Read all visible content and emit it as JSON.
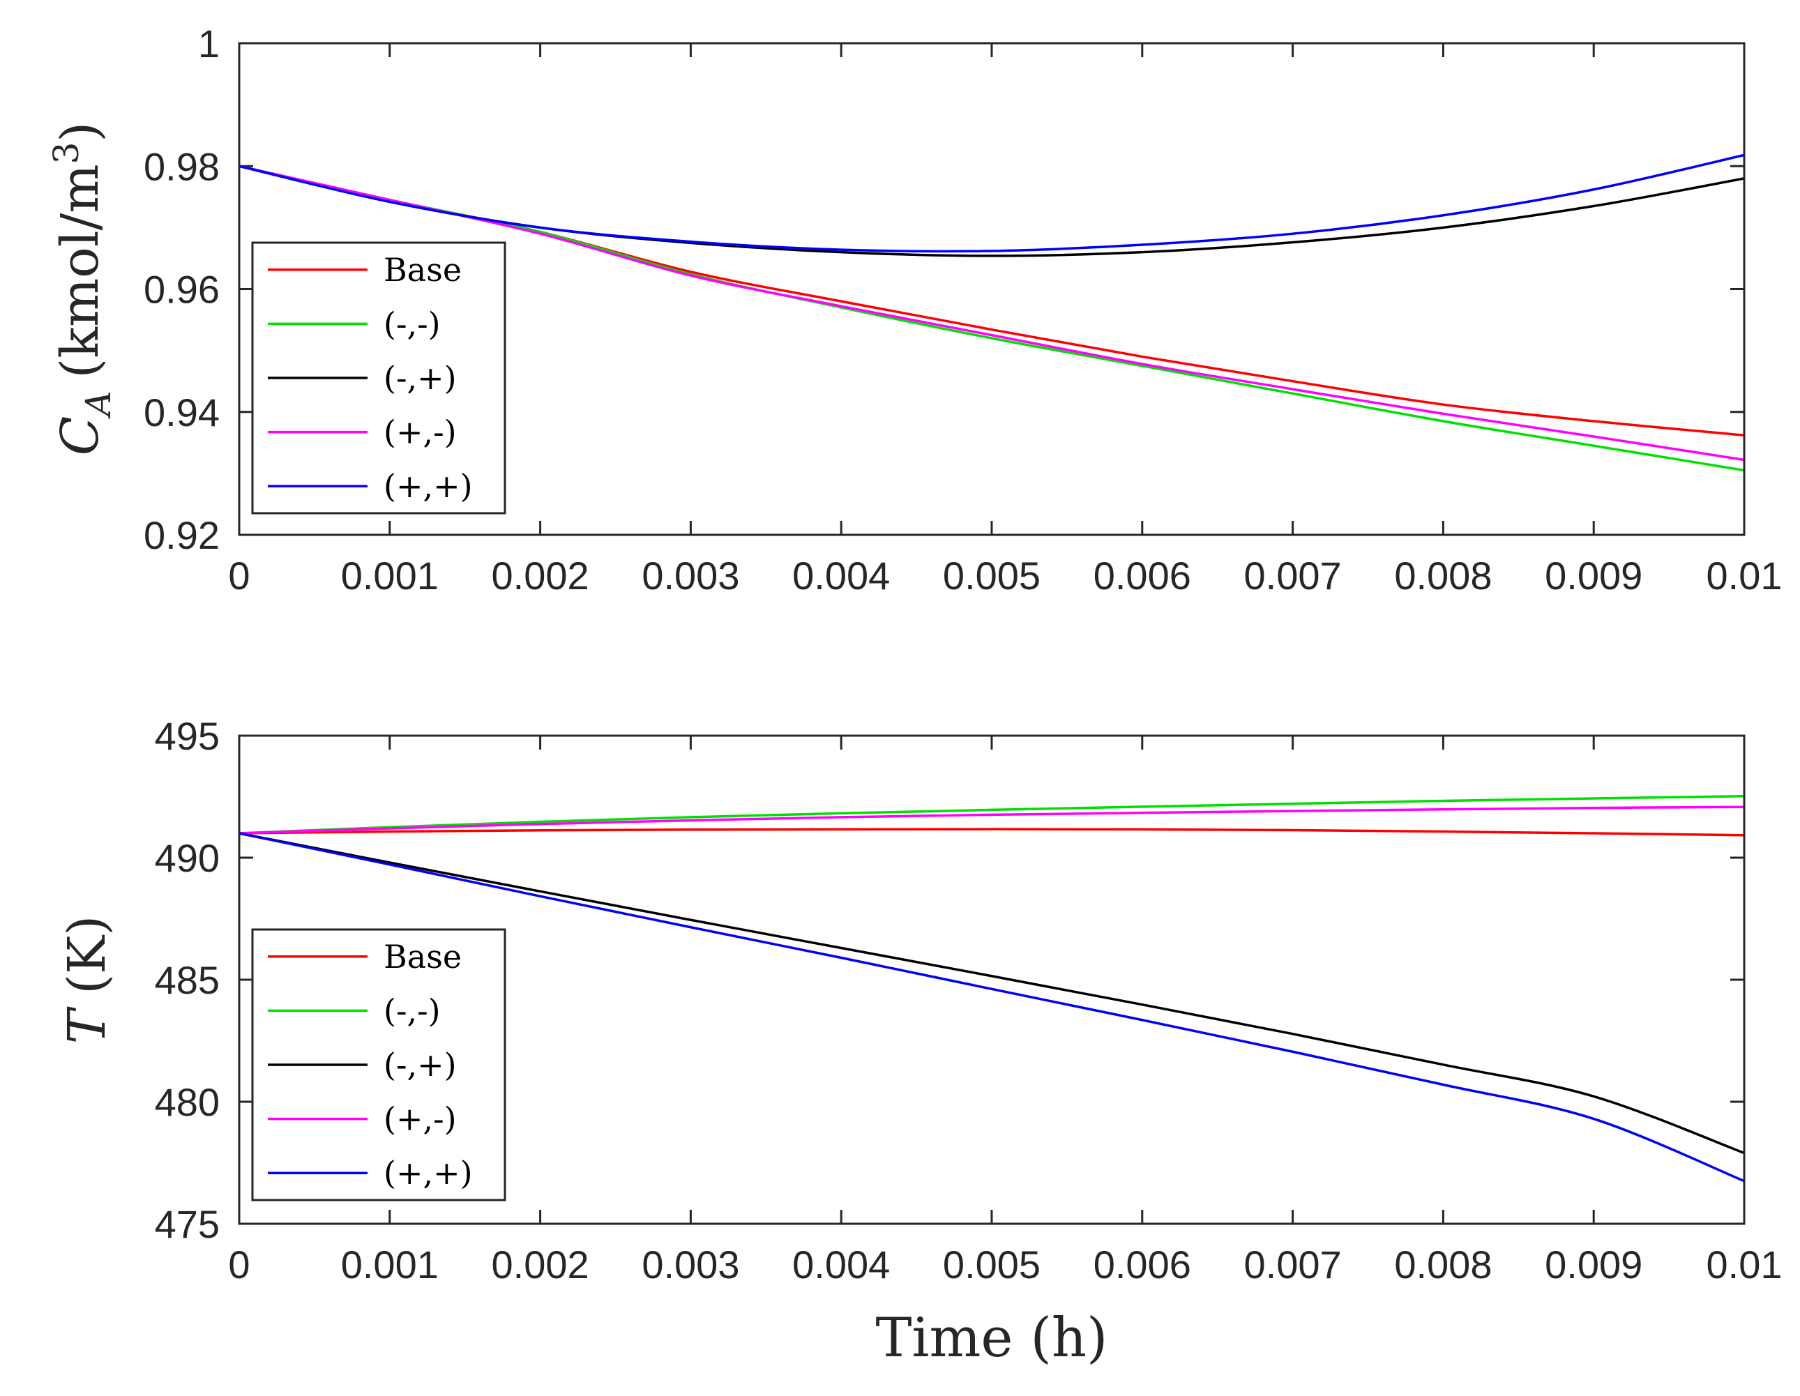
{
  "figure": {
    "xlabel": "Time (h)"
  },
  "chart_data": [
    {
      "type": "line",
      "title": "",
      "xlabel": "",
      "ylabel_main": "C",
      "ylabel_sub": "A",
      "ylabel_rest": "(kmol/m",
      "ylabel_sup": "3",
      "ylabel_close": ")",
      "xlim": [
        0,
        0.01
      ],
      "ylim": [
        0.92,
        1.0
      ],
      "xticks": [
        0,
        0.001,
        0.002,
        0.003,
        0.004,
        0.005,
        0.006,
        0.007,
        0.008,
        0.009,
        0.01
      ],
      "xtick_labels": [
        "0",
        "0.001",
        "0.002",
        "0.003",
        "0.004",
        "0.005",
        "0.006",
        "0.007",
        "0.008",
        "0.009",
        "0.01"
      ],
      "yticks": [
        0.92,
        0.94,
        0.96,
        0.98,
        1.0
      ],
      "ytick_labels": [
        "0.92",
        "0.94",
        "0.96",
        "0.98",
        "1"
      ],
      "legend_position": "middle-left",
      "x": [
        0,
        0.001,
        0.002,
        0.003,
        0.004,
        0.005,
        0.006,
        0.007,
        0.008,
        0.009,
        0.01
      ],
      "series": [
        {
          "name": "Base",
          "color": "#ff0000",
          "values": [
            0.98,
            0.9745,
            0.9693,
            0.9628,
            0.958,
            0.9534,
            0.949,
            0.945,
            0.9412,
            0.9385,
            0.9362
          ]
        },
        {
          "name": "(-,-)",
          "color": "#00e000",
          "values": [
            0.98,
            0.9745,
            0.9693,
            0.9624,
            0.957,
            0.952,
            0.9475,
            0.943,
            0.9385,
            0.9345,
            0.9305
          ]
        },
        {
          "name": "(-,+)",
          "color": "#000000",
          "values": [
            0.98,
            0.9742,
            0.97,
            0.9675,
            0.966,
            0.9654,
            0.966,
            0.9676,
            0.97,
            0.9735,
            0.978
          ]
        },
        {
          "name": "(+,-)",
          "color": "#ff00ff",
          "values": [
            0.98,
            0.9745,
            0.969,
            0.9622,
            0.9572,
            0.9525,
            0.9478,
            0.9437,
            0.9397,
            0.936,
            0.9322
          ]
        },
        {
          "name": "(+,+)",
          "color": "#0000ff",
          "values": [
            0.98,
            0.9742,
            0.97,
            0.9677,
            0.9664,
            0.9662,
            0.9672,
            0.969,
            0.972,
            0.9762,
            0.9818
          ]
        }
      ]
    },
    {
      "type": "line",
      "title": "",
      "xlabel": "Time (h)",
      "ylabel_main": "T",
      "ylabel_rest": "(K)",
      "xlim": [
        0,
        0.01
      ],
      "ylim": [
        475,
        495
      ],
      "xticks": [
        0,
        0.001,
        0.002,
        0.003,
        0.004,
        0.005,
        0.006,
        0.007,
        0.008,
        0.009,
        0.01
      ],
      "xtick_labels": [
        "0",
        "0.001",
        "0.002",
        "0.003",
        "0.004",
        "0.005",
        "0.006",
        "0.007",
        "0.008",
        "0.009",
        "0.01"
      ],
      "yticks": [
        475,
        480,
        485,
        490,
        495
      ],
      "ytick_labels": [
        "475",
        "480",
        "485",
        "490",
        "495"
      ],
      "legend_position": "lower-left",
      "x": [
        0,
        0.001,
        0.002,
        0.003,
        0.004,
        0.005,
        0.006,
        0.007,
        0.008,
        0.009,
        0.01
      ],
      "series": [
        {
          "name": "Base",
          "color": "#ff0000",
          "values": [
            491.0,
            491.07,
            491.12,
            491.15,
            491.16,
            491.17,
            491.16,
            491.13,
            491.07,
            491.0,
            490.92
          ]
        },
        {
          "name": "(-,-)",
          "color": "#00e000",
          "values": [
            491.0,
            491.25,
            491.47,
            491.66,
            491.82,
            491.96,
            492.09,
            492.21,
            492.33,
            492.43,
            492.52
          ]
        },
        {
          "name": "(-,+)",
          "color": "#000000",
          "values": [
            491.0,
            489.8,
            488.62,
            487.45,
            486.3,
            485.15,
            483.98,
            482.78,
            481.52,
            480.22,
            477.9
          ]
        },
        {
          "name": "(+,-)",
          "color": "#ff00ff",
          "values": [
            491.0,
            491.2,
            491.38,
            491.53,
            491.66,
            491.76,
            491.84,
            491.91,
            491.98,
            492.04,
            492.08
          ]
        },
        {
          "name": "(+,+)",
          "color": "#0000ff",
          "values": [
            491.0,
            489.72,
            488.42,
            487.15,
            485.9,
            484.62,
            483.35,
            482.05,
            480.7,
            479.3,
            476.75
          ]
        }
      ]
    }
  ]
}
